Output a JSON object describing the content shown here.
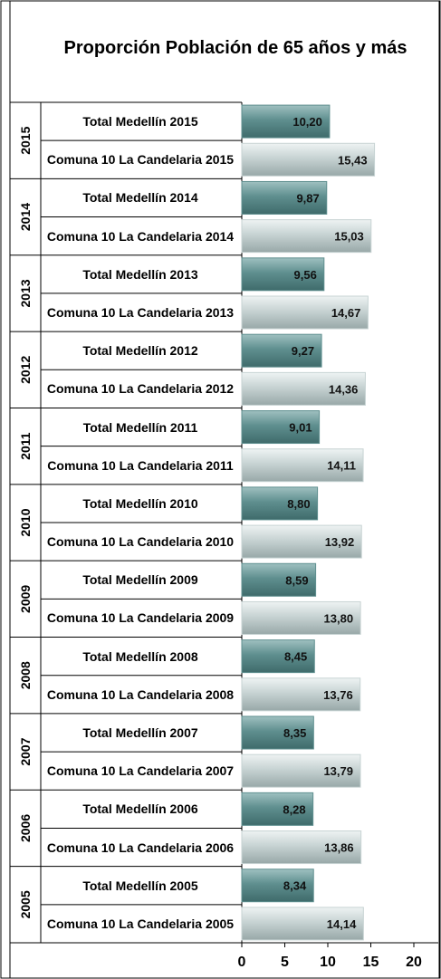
{
  "chart_data": {
    "type": "bar",
    "orientation": "horizontal",
    "title": "Proporción Población de 65 años y más",
    "group_labels": [
      "2015",
      "2014",
      "2013",
      "2012",
      "2011",
      "2010",
      "2009",
      "2008",
      "2007",
      "2006",
      "2005"
    ],
    "categories": [
      "Total Medellín 2015",
      "Comuna 10 La Candelaria 2015",
      "Total Medellín 2014",
      "Comuna 10 La Candelaria 2014",
      "Total Medellín 2013",
      "Comuna 10 La Candelaria 2013",
      "Total Medellín 2012",
      "Comuna 10 La Candelaria 2012",
      "Total Medellín 2011",
      "Comuna 10 La Candelaria 2011",
      "Total Medellín 2010",
      "Comuna 10 La Candelaria 2010",
      "Total Medellín 2009",
      "Comuna 10 La Candelaria 2009",
      "Total Medellín 2008",
      "Comuna 10 La Candelaria 2008",
      "Total Medellín 2007",
      "Comuna 10 La Candelaria 2007",
      "Total Medellín 2006",
      "Comuna 10 La Candelaria 2006",
      "Total Medellín 2005",
      "Comuna 10 La Candelaria 2005"
    ],
    "series": [
      {
        "values": [
          10.2,
          15.43,
          9.87,
          15.03,
          9.56,
          14.67,
          9.27,
          14.36,
          9.01,
          14.11,
          8.8,
          13.92,
          8.59,
          13.8,
          8.45,
          13.76,
          8.35,
          13.79,
          8.28,
          13.86,
          8.34,
          14.14
        ],
        "value_labels": [
          "10,20",
          "15,43",
          "9,87",
          "15,03",
          "9,56",
          "14,67",
          "9,27",
          "14,36",
          "9,01",
          "14,11",
          "8,80",
          "13,92",
          "8,59",
          "13,80",
          "8,45",
          "13,76",
          "8,35",
          "13,79",
          "8,28",
          "13,86",
          "8,34",
          "14,14"
        ]
      }
    ],
    "colors": [
      "#5f8f8f",
      "#c7d3d3"
    ],
    "xlim": [
      0,
      20
    ],
    "xticks": [
      0,
      5,
      10,
      15,
      20
    ]
  }
}
